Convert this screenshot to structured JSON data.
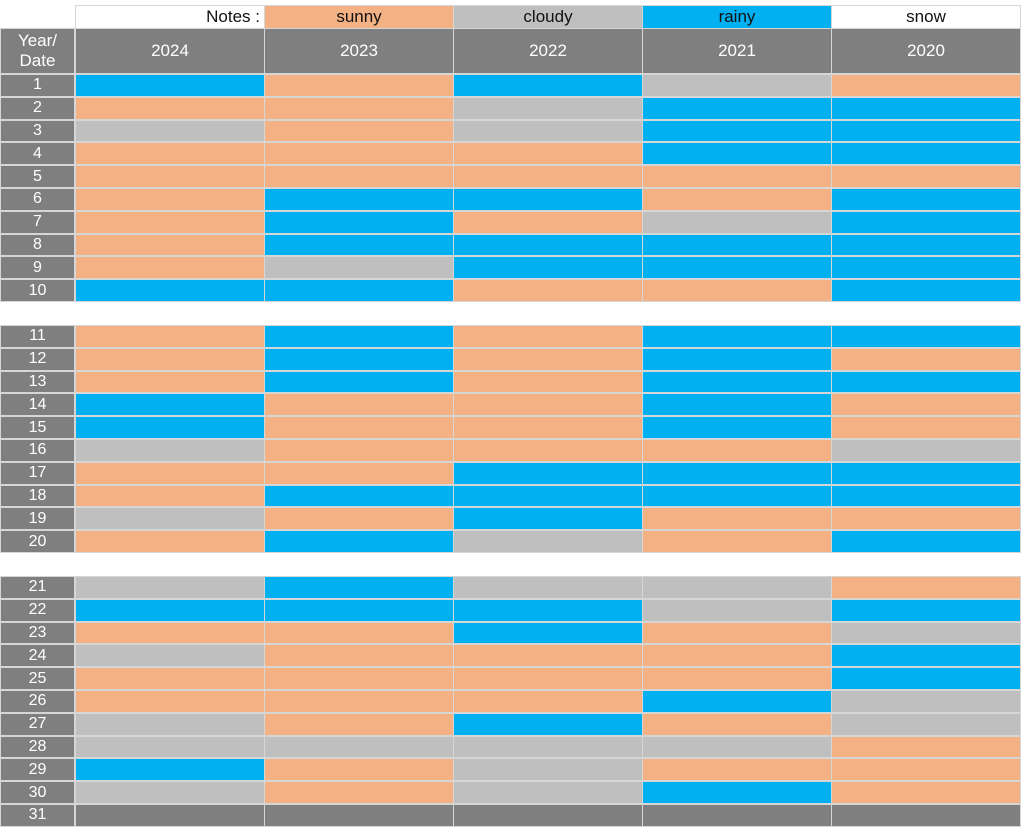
{
  "chart_data": {
    "type": "table",
    "title": "",
    "corner_label_line1": "Year/",
    "corner_label_line2": "Date",
    "notes_label": "Notes :",
    "legend": [
      {
        "key": "s",
        "name": "sunny",
        "color": "#f4b183"
      },
      {
        "key": "c",
        "name": "cloudy",
        "color": "#bfbfbf"
      },
      {
        "key": "r",
        "name": "rainy",
        "color": "#00b0f0"
      },
      {
        "key": "n",
        "name": "snow",
        "color": "#ffffff"
      }
    ],
    "empty_color": "#7f7f7f",
    "header_color": "#7f7f7f",
    "years": [
      "2024",
      "2023",
      "2022",
      "2021",
      "2020"
    ],
    "days": [
      "1",
      "2",
      "3",
      "4",
      "5",
      "6",
      "7",
      "8",
      "9",
      "10",
      "11",
      "12",
      "13",
      "14",
      "15",
      "16",
      "17",
      "18",
      "19",
      "20",
      "21",
      "22",
      "23",
      "24",
      "25",
      "26",
      "27",
      "28",
      "29",
      "30",
      "31"
    ],
    "weather": {
      "2024": [
        "r",
        "s",
        "c",
        "s",
        "s",
        "s",
        "s",
        "s",
        "s",
        "r",
        "s",
        "s",
        "s",
        "r",
        "r",
        "c",
        "s",
        "s",
        "c",
        "s",
        "c",
        "r",
        "s",
        "c",
        "s",
        "s",
        "c",
        "c",
        "r",
        "c",
        ""
      ],
      "2023": [
        "s",
        "s",
        "s",
        "s",
        "s",
        "r",
        "r",
        "r",
        "c",
        "r",
        "r",
        "r",
        "r",
        "s",
        "s",
        "s",
        "s",
        "r",
        "s",
        "r",
        "r",
        "r",
        "s",
        "s",
        "s",
        "s",
        "s",
        "c",
        "s",
        "s",
        ""
      ],
      "2022": [
        "r",
        "c",
        "c",
        "s",
        "s",
        "r",
        "s",
        "r",
        "r",
        "s",
        "s",
        "s",
        "s",
        "s",
        "s",
        "s",
        "r",
        "r",
        "r",
        "c",
        "c",
        "r",
        "r",
        "s",
        "s",
        "s",
        "r",
        "c",
        "c",
        "c",
        ""
      ],
      "2021": [
        "c",
        "r",
        "r",
        "r",
        "s",
        "s",
        "c",
        "r",
        "r",
        "s",
        "r",
        "r",
        "r",
        "r",
        "r",
        "s",
        "r",
        "r",
        "s",
        "s",
        "c",
        "c",
        "s",
        "s",
        "s",
        "r",
        "s",
        "c",
        "s",
        "r",
        ""
      ],
      "2020": [
        "s",
        "r",
        "r",
        "r",
        "s",
        "r",
        "r",
        "r",
        "r",
        "r",
        "r",
        "s",
        "r",
        "s",
        "s",
        "c",
        "r",
        "r",
        "s",
        "r",
        "s",
        "r",
        "c",
        "r",
        "r",
        "c",
        "c",
        "s",
        "s",
        "s",
        ""
      ]
    }
  }
}
